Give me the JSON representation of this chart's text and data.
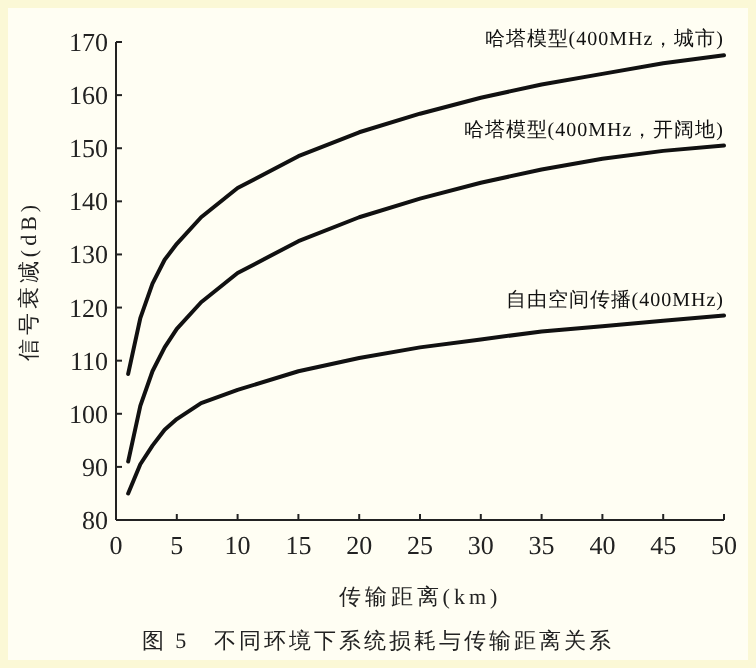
{
  "chart_data": {
    "type": "line",
    "xlabel": "传输距离(km)",
    "ylabel": "信号衰减(dB)",
    "xlim": [
      0,
      50
    ],
    "xticks": [
      0,
      5,
      10,
      15,
      20,
      25,
      30,
      35,
      40,
      45,
      50
    ],
    "ylim": [
      80,
      170
    ],
    "yticks": [
      80,
      90,
      100,
      110,
      120,
      130,
      140,
      150,
      160,
      170
    ],
    "grid": false,
    "marker": "none",
    "line_style": "solid",
    "series": [
      {
        "name": "哈塔模型(400MHz，城市)",
        "color": "#111111",
        "x": [
          1,
          2,
          3,
          4,
          5,
          7,
          10,
          15,
          20,
          25,
          30,
          35,
          40,
          45,
          50
        ],
        "values": [
          107.5,
          118,
          124.5,
          129,
          132,
          137,
          142.5,
          148.5,
          153,
          156.5,
          159.5,
          162,
          164,
          166,
          167.5
        ]
      },
      {
        "name": "哈塔模型(400MHz，开阔地)",
        "color": "#111111",
        "x": [
          1,
          2,
          3,
          4,
          5,
          7,
          10,
          15,
          20,
          25,
          30,
          35,
          40,
          45,
          50
        ],
        "values": [
          91,
          101.5,
          108,
          112.5,
          116,
          121,
          126.5,
          132.5,
          137,
          140.5,
          143.5,
          146,
          148,
          149.5,
          150.5
        ]
      },
      {
        "name": "自由空间传播(400MHz)",
        "color": "#111111",
        "x": [
          1,
          2,
          3,
          4,
          5,
          7,
          10,
          15,
          20,
          25,
          30,
          35,
          40,
          45,
          50
        ],
        "values": [
          85,
          90.5,
          94,
          97,
          99,
          102,
          104.5,
          108,
          110.5,
          112.5,
          114,
          115.5,
          116.5,
          117.5,
          118.5
        ]
      }
    ],
    "annotations": [
      "图 5　不同环境下系统损耗与传输距离关系"
    ]
  }
}
